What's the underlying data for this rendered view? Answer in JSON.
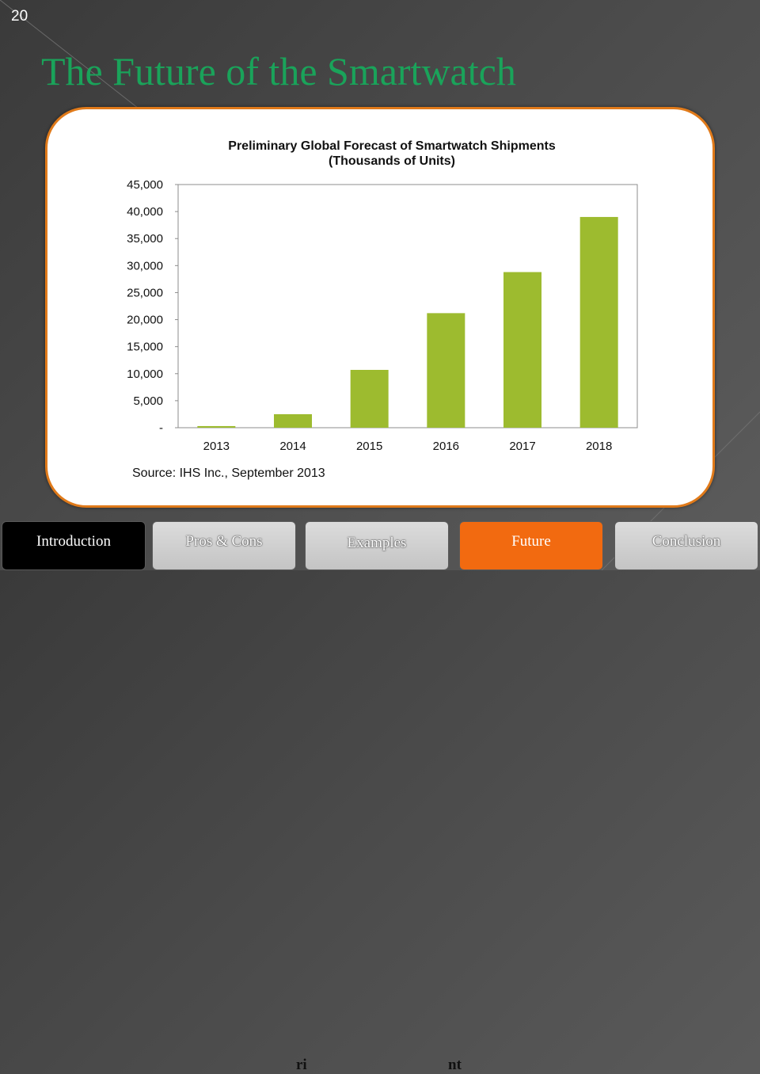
{
  "slide": {
    "number": "20",
    "title": "The Future of the Smartwatch",
    "hidden_fragments": [
      "ri",
      "nt"
    ]
  },
  "colors": {
    "title": "#1aa35a",
    "panel_border": "#e07a1a",
    "bar": "#9dbb2f",
    "tab_active": "#000000",
    "tab_current": "#f26a10",
    "tab_muted": "#cfcfcf"
  },
  "chart_data": {
    "type": "bar",
    "title": "Preliminary Global Forecast of Smartwatch Shipments",
    "subtitle": "(Thousands of Units)",
    "categories": [
      "2013",
      "2014",
      "2015",
      "2016",
      "2017",
      "2018"
    ],
    "values": [
      300,
      2500,
      10700,
      21200,
      28800,
      39000
    ],
    "ylim": [
      0,
      45000
    ],
    "yticks": [
      0,
      5000,
      10000,
      15000,
      20000,
      25000,
      30000,
      35000,
      40000,
      45000
    ],
    "ytick_labels": [
      "-",
      "5,000",
      "10,000",
      "15,000",
      "20,000",
      "25,000",
      "30,000",
      "35,000",
      "40,000",
      "45,000"
    ],
    "source": "Source: IHS Inc., September 2013",
    "grid": false,
    "legend": "none"
  },
  "nav": {
    "tabs": [
      {
        "label": "Introduction",
        "state": "active"
      },
      {
        "label": "Pros & Cons",
        "state": "muted"
      },
      {
        "label": "Examples",
        "state": "muted"
      },
      {
        "label": "Future",
        "state": "current"
      },
      {
        "label": "Conclusion",
        "state": "muted"
      }
    ]
  }
}
